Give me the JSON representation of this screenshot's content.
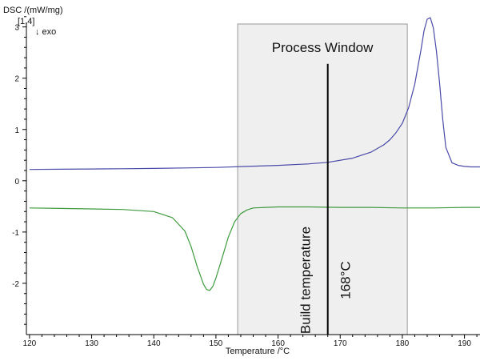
{
  "chart_data": {
    "type": "line",
    "ylabel": "DSC /(mW/mg)",
    "ylabel_note": "[1.4]",
    "exo_label": "↓ exo",
    "xlabel": "Temperature /°C",
    "xlim": [
      119.5,
      192.5
    ],
    "ylim": [
      -3.0,
      3.4
    ],
    "xticks": [
      120,
      130,
      140,
      150,
      160,
      170,
      180,
      190
    ],
    "yticks": [
      3,
      2,
      1,
      0,
      -1,
      -2
    ],
    "grid": false,
    "legend": "none",
    "colors": {
      "heating": "#4a4aa8",
      "cooling": "#3f9a3f",
      "window_fill": "#efefef",
      "window_border": "#9a9a9a",
      "build_line": "#000000"
    },
    "process_window": {
      "x_start": 153.5,
      "x_end": 180.8,
      "label": "Process Window"
    },
    "build_temperature": {
      "x": 168,
      "y_top": 2.28,
      "label": "Build temperature",
      "value_label": "168°C"
    },
    "series": [
      {
        "x": [
          120,
          125,
          130,
          135,
          140,
          145,
          150,
          155,
          160,
          165,
          168,
          172,
          175,
          177,
          178,
          179,
          180,
          181,
          182,
          183,
          183.5,
          184,
          184.5,
          185,
          185.5,
          186,
          186.5,
          187,
          188,
          189,
          190,
          191,
          192.5
        ],
        "y": [
          0.22,
          0.225,
          0.23,
          0.235,
          0.24,
          0.25,
          0.26,
          0.28,
          0.3,
          0.33,
          0.36,
          0.44,
          0.56,
          0.7,
          0.8,
          0.94,
          1.12,
          1.42,
          1.88,
          2.55,
          2.93,
          3.15,
          3.18,
          2.98,
          2.52,
          1.9,
          1.2,
          0.65,
          0.35,
          0.3,
          0.28,
          0.27,
          0.27
        ]
      },
      {
        "x": [
          120,
          125,
          130,
          135,
          140,
          143,
          145,
          146,
          147,
          148,
          148.5,
          149,
          149.5,
          150,
          151,
          152,
          153,
          154,
          155,
          156,
          158,
          160,
          165,
          170,
          175,
          180,
          185,
          190,
          192.5
        ],
        "y": [
          -0.53,
          -0.54,
          -0.55,
          -0.56,
          -0.6,
          -0.72,
          -0.98,
          -1.28,
          -1.68,
          -2.02,
          -2.12,
          -2.14,
          -2.06,
          -1.9,
          -1.5,
          -1.1,
          -0.8,
          -0.64,
          -0.57,
          -0.53,
          -0.52,
          -0.51,
          -0.51,
          -0.52,
          -0.52,
          -0.53,
          -0.53,
          -0.52,
          -0.52
        ]
      }
    ]
  }
}
